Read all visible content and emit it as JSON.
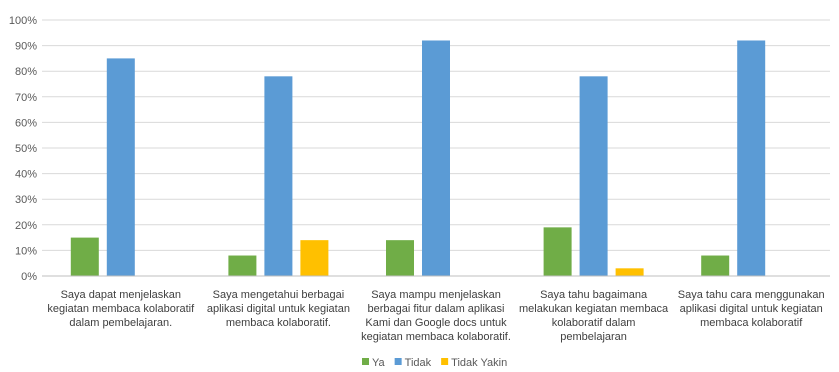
{
  "chart_data": {
    "type": "bar",
    "title": "",
    "xlabel": "",
    "ylabel": "",
    "ylim": [
      0,
      100
    ],
    "y_ticks": [
      "0%",
      "10%",
      "20%",
      "30%",
      "40%",
      "50%",
      "60%",
      "70%",
      "80%",
      "90%",
      "100%"
    ],
    "grid": true,
    "legend_position": "bottom",
    "categories": [
      [
        "Saya dapat menjelaskan",
        "kegiatan membaca kolaboratif",
        "dalam pembelajaran."
      ],
      [
        "Saya mengetahui berbagai",
        "aplikasi digital untuk kegiatan",
        "membaca kolaboratif."
      ],
      [
        "Saya mampu menjelaskan",
        "berbagai fitur dalam aplikasi",
        "Kami dan Google docs untuk",
        "kegiatan membaca kolaboratif."
      ],
      [
        "Saya tahu bagaimana",
        "melakukan kegiatan membaca",
        "kolaboratif dalam",
        "pembelajaran"
      ],
      [
        "Saya tahu cara menggunakan",
        "aplikasi digital untuk kegiatan",
        "membaca kolaboratif"
      ]
    ],
    "series": [
      {
        "name": "Ya",
        "color": "#70ad47",
        "values": [
          15,
          8,
          14,
          19,
          8
        ]
      },
      {
        "name": "Tidak",
        "color": "#5b9bd5",
        "values": [
          85,
          78,
          92,
          78,
          92
        ]
      },
      {
        "name": "Tidak Yakin",
        "color": "#ffc000",
        "values": [
          0,
          14,
          0,
          3,
          0
        ]
      }
    ]
  }
}
